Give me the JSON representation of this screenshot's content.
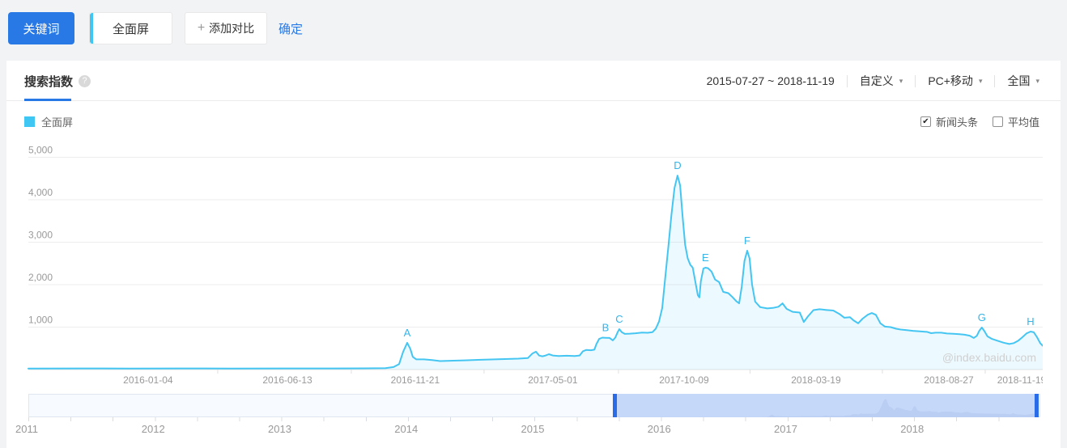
{
  "toolbar": {
    "keyword_button": "关键词",
    "keyword": "全面屏",
    "add_plus": "+",
    "add_compare": "添加对比",
    "confirm": "确定"
  },
  "icons": {
    "help": "?",
    "caret": "▾",
    "check": "✔"
  },
  "panel": {
    "title": "搜索指数",
    "date_range": "2015-07-27 ~ 2018-11-19",
    "dropdowns": [
      {
        "label": "自定义"
      },
      {
        "label": "PC+移动"
      },
      {
        "label": "全国"
      }
    ],
    "legend_label": "全面屏",
    "legend_color": "#3fc6f3",
    "checkboxes": [
      {
        "label": "新闻头条",
        "checked": true
      },
      {
        "label": "平均值",
        "checked": false
      }
    ],
    "watermark": "@index.baidu.com"
  },
  "chart_data": {
    "type": "area",
    "title": "搜索指数 - 全面屏",
    "x_range": [
      "2015-07-27",
      "2018-11-19"
    ],
    "ylim": [
      0,
      5000
    ],
    "grid": true,
    "line_color": "#45c6f2",
    "fill_color": "rgba(69,198,242,0.10)",
    "marker_color": "#35b4e8",
    "y_ticks": [
      {
        "label": "5,000",
        "value": 5000
      },
      {
        "label": "4,000",
        "value": 4000
      },
      {
        "label": "3,000",
        "value": 3000
      },
      {
        "label": "2,000",
        "value": 2000
      },
      {
        "label": "1,000",
        "value": 1000
      }
    ],
    "x_ticks": [
      {
        "label": "2016-01-04",
        "t": 0.118
      },
      {
        "label": "2016-06-13",
        "t": 0.2554
      },
      {
        "label": "2016-11-21",
        "t": 0.3814
      },
      {
        "label": "2017-05-01",
        "t": 0.5171
      },
      {
        "label": "2017-10-09",
        "t": 0.6464
      },
      {
        "label": "2018-03-19",
        "t": 0.7765
      },
      {
        "label": "2018-08-27",
        "t": 0.9074
      },
      {
        "label": "2018-11-19",
        "t": 0.9792
      }
    ],
    "markers": [
      {
        "label": "A",
        "t": 0.3735,
        "v": 630
      },
      {
        "label": "B",
        "t": 0.569,
        "v": 750
      },
      {
        "label": "C",
        "t": 0.5826,
        "v": 952
      },
      {
        "label": "D",
        "t": 0.64,
        "v": 4570
      },
      {
        "label": "E",
        "t": 0.6675,
        "v": 2400
      },
      {
        "label": "F",
        "t": 0.7087,
        "v": 2800
      },
      {
        "label": "G",
        "t": 0.94,
        "v": 990
      },
      {
        "label": "H",
        "t": 0.988,
        "v": 895
      }
    ],
    "series": [
      {
        "name": "全面屏",
        "color": "#45c6f2",
        "points": [
          [
            0,
            25
          ],
          [
            0.05,
            26
          ],
          [
            0.1,
            25
          ],
          [
            0.15,
            27
          ],
          [
            0.2,
            25
          ],
          [
            0.25,
            26
          ],
          [
            0.3,
            27
          ],
          [
            0.33,
            28
          ],
          [
            0.352,
            34
          ],
          [
            0.36,
            60
          ],
          [
            0.3655,
            130
          ],
          [
            0.3695,
            420
          ],
          [
            0.3735,
            630
          ],
          [
            0.3765,
            490
          ],
          [
            0.379,
            300
          ],
          [
            0.3825,
            240
          ],
          [
            0.39,
            240
          ],
          [
            0.398,
            222
          ],
          [
            0.406,
            200
          ],
          [
            0.419,
            210
          ],
          [
            0.43,
            218
          ],
          [
            0.443,
            228
          ],
          [
            0.463,
            242
          ],
          [
            0.483,
            258
          ],
          [
            0.4925,
            272
          ],
          [
            0.497,
            380
          ],
          [
            0.5004,
            420
          ],
          [
            0.5036,
            330
          ],
          [
            0.5068,
            312
          ],
          [
            0.51,
            332
          ],
          [
            0.5132,
            362
          ],
          [
            0.517,
            332
          ],
          [
            0.5228,
            320
          ],
          [
            0.5307,
            326
          ],
          [
            0.5387,
            320
          ],
          [
            0.5435,
            332
          ],
          [
            0.5467,
            430
          ],
          [
            0.55,
            462
          ],
          [
            0.5547,
            456
          ],
          [
            0.558,
            468
          ],
          [
            0.56,
            600
          ],
          [
            0.5627,
            722
          ],
          [
            0.5659,
            752
          ],
          [
            0.569,
            748
          ],
          [
            0.573,
            744
          ],
          [
            0.5762,
            688
          ],
          [
            0.5786,
            752
          ],
          [
            0.581,
            882
          ],
          [
            0.5826,
            952
          ],
          [
            0.585,
            880
          ],
          [
            0.588,
            840
          ],
          [
            0.593,
            846
          ],
          [
            0.5986,
            856
          ],
          [
            0.605,
            870
          ],
          [
            0.6105,
            866
          ],
          [
            0.6153,
            882
          ],
          [
            0.6185,
            962
          ],
          [
            0.6217,
            1130
          ],
          [
            0.6249,
            1450
          ],
          [
            0.628,
            2200
          ],
          [
            0.631,
            2900
          ],
          [
            0.634,
            3650
          ],
          [
            0.637,
            4280
          ],
          [
            0.64,
            4570
          ],
          [
            0.6425,
            4340
          ],
          [
            0.645,
            3600
          ],
          [
            0.6475,
            2940
          ],
          [
            0.65,
            2620
          ],
          [
            0.6525,
            2470
          ],
          [
            0.655,
            2400
          ],
          [
            0.6575,
            2080
          ],
          [
            0.66,
            1750
          ],
          [
            0.6615,
            1700
          ],
          [
            0.663,
            2080
          ],
          [
            0.6655,
            2380
          ],
          [
            0.6675,
            2400
          ],
          [
            0.67,
            2388
          ],
          [
            0.6735,
            2308
          ],
          [
            0.677,
            2120
          ],
          [
            0.681,
            2060
          ],
          [
            0.685,
            1830
          ],
          [
            0.69,
            1800
          ],
          [
            0.694,
            1710
          ],
          [
            0.698,
            1608
          ],
          [
            0.7007,
            1560
          ],
          [
            0.7033,
            1950
          ],
          [
            0.706,
            2560
          ],
          [
            0.7087,
            2800
          ],
          [
            0.711,
            2620
          ],
          [
            0.7135,
            2000
          ],
          [
            0.7165,
            1600
          ],
          [
            0.7215,
            1470
          ],
          [
            0.7285,
            1440
          ],
          [
            0.734,
            1452
          ],
          [
            0.7395,
            1480
          ],
          [
            0.7435,
            1560
          ],
          [
            0.7475,
            1430
          ],
          [
            0.7535,
            1360
          ],
          [
            0.7605,
            1342
          ],
          [
            0.7645,
            1120
          ],
          [
            0.7685,
            1250
          ],
          [
            0.774,
            1400
          ],
          [
            0.78,
            1420
          ],
          [
            0.786,
            1406
          ],
          [
            0.7935,
            1390
          ],
          [
            0.7995,
            1310
          ],
          [
            0.8045,
            1220
          ],
          [
            0.81,
            1232
          ],
          [
            0.8135,
            1160
          ],
          [
            0.818,
            1090
          ],
          [
            0.8225,
            1200
          ],
          [
            0.8275,
            1292
          ],
          [
            0.8315,
            1332
          ],
          [
            0.8355,
            1290
          ],
          [
            0.84,
            1090
          ],
          [
            0.8445,
            1012
          ],
          [
            0.85,
            1000
          ],
          [
            0.8555,
            962
          ],
          [
            0.86,
            942
          ],
          [
            0.866,
            930
          ],
          [
            0.872,
            912
          ],
          [
            0.879,
            900
          ],
          [
            0.886,
            888
          ],
          [
            0.89,
            858
          ],
          [
            0.8945,
            868
          ],
          [
            0.9,
            868
          ],
          [
            0.9055,
            850
          ],
          [
            0.912,
            842
          ],
          [
            0.918,
            832
          ],
          [
            0.923,
            820
          ],
          [
            0.928,
            798
          ],
          [
            0.932,
            745
          ],
          [
            0.935,
            795
          ],
          [
            0.9375,
            915
          ],
          [
            0.94,
            990
          ],
          [
            0.9425,
            905
          ],
          [
            0.9455,
            782
          ],
          [
            0.95,
            722
          ],
          [
            0.955,
            682
          ],
          [
            0.9615,
            632
          ],
          [
            0.967,
            602
          ],
          [
            0.9715,
            622
          ],
          [
            0.976,
            682
          ],
          [
            0.98,
            762
          ],
          [
            0.984,
            852
          ],
          [
            0.988,
            895
          ],
          [
            0.9912,
            878
          ],
          [
            0.9944,
            762
          ],
          [
            0.9975,
            622
          ],
          [
            1,
            560
          ]
        ]
      }
    ]
  },
  "slider": {
    "years": [
      "2011",
      "2012",
      "2013",
      "2014",
      "2015",
      "2016",
      "2017",
      "2018"
    ],
    "selection": {
      "start": 0.5776,
      "end": 0.9992
    }
  }
}
